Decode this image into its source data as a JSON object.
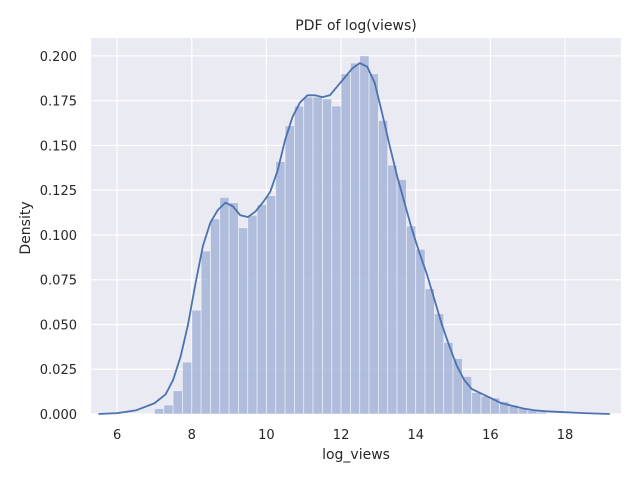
{
  "chart_data": {
    "type": "bar",
    "title": "PDF of log(views)",
    "xlabel": "log_views",
    "ylabel": "Density",
    "xlim": [
      5.3,
      19.5
    ],
    "ylim": [
      0,
      0.21
    ],
    "grid": true,
    "x_ticks": [
      6,
      8,
      10,
      12,
      14,
      16,
      18
    ],
    "x_tick_labels": [
      "6",
      "8",
      "10",
      "12",
      "14",
      "16",
      "18"
    ],
    "y_ticks": [
      0.0,
      0.025,
      0.05,
      0.075,
      0.1,
      0.125,
      0.15,
      0.175,
      0.2
    ],
    "y_tick_labels": [
      "0.000",
      "0.025",
      "0.050",
      "0.075",
      "0.100",
      "0.125",
      "0.150",
      "0.175",
      "0.200"
    ],
    "bin_width": 0.25,
    "bins_start": [
      7.0,
      7.25,
      7.5,
      7.75,
      8.0,
      8.25,
      8.5,
      8.75,
      9.0,
      9.25,
      9.5,
      9.75,
      10.0,
      10.25,
      10.5,
      10.75,
      11.0,
      11.25,
      11.5,
      11.75,
      12.0,
      12.25,
      12.5,
      12.75,
      13.0,
      13.25,
      13.5,
      13.75,
      14.0,
      14.25,
      14.5,
      14.75,
      15.0,
      15.25,
      15.5,
      15.75,
      16.0,
      16.25,
      16.5,
      16.75,
      17.0,
      17.25
    ],
    "hist_values": [
      0.003,
      0.005,
      0.013,
      0.029,
      0.058,
      0.091,
      0.109,
      0.121,
      0.118,
      0.104,
      0.111,
      0.117,
      0.122,
      0.141,
      0.161,
      0.172,
      0.177,
      0.177,
      0.176,
      0.172,
      0.19,
      0.196,
      0.2,
      0.19,
      0.164,
      0.139,
      0.131,
      0.105,
      0.092,
      0.07,
      0.056,
      0.04,
      0.031,
      0.021,
      0.012,
      0.01,
      0.009,
      0.007,
      0.005,
      0.003,
      0.002,
      0.001
    ],
    "kde": {
      "x": [
        5.5,
        6.0,
        6.5,
        7.0,
        7.3,
        7.5,
        7.7,
        7.9,
        8.1,
        8.3,
        8.5,
        8.7,
        8.9,
        9.1,
        9.3,
        9.5,
        9.7,
        9.9,
        10.1,
        10.3,
        10.5,
        10.7,
        10.9,
        11.1,
        11.3,
        11.5,
        11.7,
        11.9,
        12.1,
        12.3,
        12.5,
        12.7,
        12.9,
        13.1,
        13.3,
        13.5,
        13.7,
        13.9,
        14.1,
        14.3,
        14.5,
        14.7,
        14.9,
        15.1,
        15.3,
        15.5,
        15.7,
        15.9,
        16.1,
        16.3,
        16.5,
        16.7,
        16.9,
        17.2,
        17.5,
        18.0,
        18.5,
        19.2
      ],
      "y": [
        0.0,
        0.0005,
        0.002,
        0.006,
        0.011,
        0.019,
        0.032,
        0.05,
        0.073,
        0.094,
        0.107,
        0.114,
        0.118,
        0.116,
        0.111,
        0.11,
        0.113,
        0.118,
        0.124,
        0.136,
        0.153,
        0.166,
        0.174,
        0.178,
        0.178,
        0.177,
        0.178,
        0.183,
        0.188,
        0.193,
        0.196,
        0.194,
        0.185,
        0.168,
        0.15,
        0.133,
        0.118,
        0.103,
        0.09,
        0.078,
        0.064,
        0.05,
        0.038,
        0.027,
        0.019,
        0.014,
        0.012,
        0.01,
        0.008,
        0.006,
        0.005,
        0.004,
        0.003,
        0.002,
        0.0015,
        0.001,
        0.0005,
        0.0
      ]
    },
    "colors": {
      "background": "#eaeaf2",
      "grid": "#ffffff",
      "bars": "#a4b4d8",
      "line": "#4c72b0",
      "text": "#262626"
    }
  }
}
